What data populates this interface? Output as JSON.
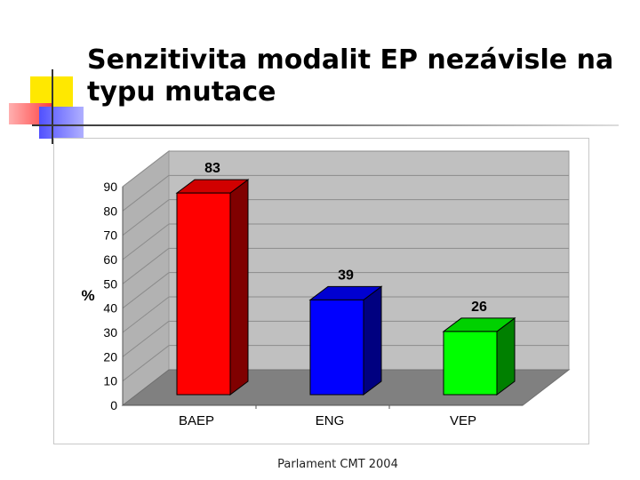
{
  "slide": {
    "title": "Senzitivita modalit EP nezávisle na typu mutace",
    "footer": "Parlament CMT 2004"
  },
  "chart_data": {
    "type": "bar",
    "style": "3d",
    "categories": [
      "BAEP",
      "ENG",
      "VEP"
    ],
    "values": [
      83,
      39,
      26
    ],
    "data_labels": [
      "83",
      "39",
      "26"
    ],
    "colors": [
      "#ff0000",
      "#0000ff",
      "#00ff00"
    ],
    "ylabel": "%",
    "ylim": [
      0,
      90
    ],
    "yticks": [
      0,
      10,
      20,
      30,
      40,
      50,
      60,
      70,
      80,
      90
    ],
    "grid": true,
    "legend": "none"
  }
}
